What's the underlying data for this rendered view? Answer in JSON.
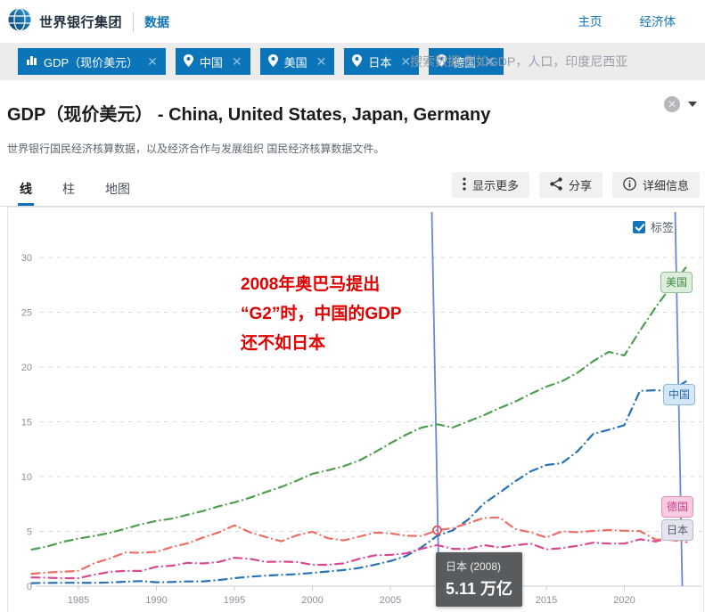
{
  "header": {
    "brand": "世界银行集团",
    "section": "数据",
    "nav": [
      {
        "label": "主页"
      },
      {
        "label": "经济体"
      }
    ]
  },
  "filters": {
    "tags": [
      {
        "label": "GDP（现价美元）",
        "icon": "bar-chart-icon"
      },
      {
        "label": "中国",
        "icon": "map-pin-icon"
      },
      {
        "label": "美国",
        "icon": "map-pin-icon"
      },
      {
        "label": "日本",
        "icon": "map-pin-icon"
      },
      {
        "label": "德国",
        "icon": "map-pin-icon"
      }
    ],
    "search_placeholder": "搜索数据.例如GDP，人口，印度尼西亚"
  },
  "page": {
    "title_main": "GDP（现价美元）",
    "title_rest": " - China, United States, Japan, Germany",
    "subtitle": "世界银行国民经济核算数据，以及经济合作与发展组织 国民经济核算数据文件。"
  },
  "toolbar": {
    "tabs": [
      {
        "label": "线",
        "active": true
      },
      {
        "label": "柱",
        "active": false
      },
      {
        "label": "地图",
        "active": false
      }
    ],
    "actions": [
      {
        "label": "显示更多",
        "icon": "kebab-icon"
      },
      {
        "label": "分享",
        "icon": "share-icon"
      },
      {
        "label": "详细信息",
        "icon": "info-icon"
      }
    ]
  },
  "chart_overlay": {
    "labels_checkbox": {
      "label": "标签",
      "checked": true
    },
    "annotation_lines": [
      "2008年奥巴马提出",
      "“G2”时，中国的GDP",
      "还不如日本"
    ],
    "annotation_color": "#e10000",
    "tooltip": {
      "title": "日本 (2008)",
      "value": "5.11 万亿"
    }
  },
  "chart_data": {
    "type": "line",
    "title": "GDP (现价美元), 万亿 (trillions USD)",
    "unit": "万亿",
    "x": [
      1982,
      1983,
      1984,
      1985,
      1986,
      1987,
      1988,
      1989,
      1990,
      1991,
      1992,
      1993,
      1994,
      1995,
      1996,
      1997,
      1998,
      1999,
      2000,
      2001,
      2002,
      2003,
      2004,
      2005,
      2006,
      2007,
      2008,
      2009,
      2010,
      2011,
      2012,
      2013,
      2014,
      2015,
      2016,
      2017,
      2018,
      2019,
      2020,
      2021,
      2022,
      2023,
      2024
    ],
    "series": [
      {
        "name": "美国",
        "color": "#4e9e50",
        "label_bg": "#ddeedd",
        "label_border": "#90c290",
        "label_color": "#3f8a42",
        "values": [
          3.34,
          3.63,
          4.04,
          4.34,
          4.58,
          4.86,
          5.24,
          5.64,
          5.96,
          6.16,
          6.52,
          6.86,
          7.29,
          7.64,
          8.07,
          8.58,
          9.06,
          9.63,
          10.25,
          10.58,
          10.94,
          11.46,
          12.22,
          13.04,
          13.82,
          14.47,
          14.77,
          14.48,
          15.05,
          15.6,
          16.25,
          16.84,
          17.55,
          18.21,
          18.7,
          19.48,
          20.53,
          21.38,
          21.06,
          23.32,
          25.44,
          27.36,
          29.18
        ]
      },
      {
        "name": "中国",
        "color": "#2a72b5",
        "label_bg": "#d4e7f8",
        "label_border": "#8ab8e0",
        "label_color": "#2a6cab",
        "values": [
          0.28,
          0.3,
          0.31,
          0.31,
          0.3,
          0.33,
          0.41,
          0.46,
          0.36,
          0.38,
          0.43,
          0.44,
          0.56,
          0.73,
          0.86,
          0.96,
          1.03,
          1.09,
          1.21,
          1.34,
          1.47,
          1.66,
          1.96,
          2.29,
          2.75,
          3.55,
          4.59,
          5.1,
          6.09,
          7.55,
          8.53,
          9.57,
          10.48,
          11.06,
          11.23,
          12.31,
          13.89,
          14.28,
          14.69,
          17.82,
          17.88,
          17.79,
          18.74
        ]
      },
      {
        "name": "德国",
        "color": "#d94892",
        "label_bg": "#f8cde1",
        "label_border": "#e88bb6",
        "label_color": "#cd3f86",
        "values": [
          0.8,
          0.77,
          0.72,
          0.73,
          1.04,
          1.3,
          1.4,
          1.39,
          1.77,
          1.87,
          2.13,
          2.07,
          2.21,
          2.59,
          2.5,
          2.21,
          2.24,
          2.2,
          1.95,
          1.95,
          2.08,
          2.5,
          2.81,
          2.85,
          2.99,
          3.42,
          3.75,
          3.41,
          3.4,
          3.75,
          3.53,
          3.73,
          3.89,
          3.36,
          3.47,
          3.69,
          3.97,
          3.89,
          3.89,
          4.28,
          4.08,
          4.46,
          4.66
        ]
      },
      {
        "name": "日本",
        "color": "#ee6e66",
        "label_bg": "#e4e4ee",
        "label_border": "#b9b9cf",
        "label_color": "#4f5b6e",
        "values": [
          1.13,
          1.24,
          1.32,
          1.4,
          2.08,
          2.53,
          3.07,
          3.05,
          3.13,
          3.58,
          3.91,
          4.45,
          4.91,
          5.55,
          4.92,
          4.49,
          4.1,
          4.64,
          4.97,
          4.37,
          4.18,
          4.52,
          4.89,
          4.83,
          4.6,
          4.58,
          5.11,
          5.29,
          5.76,
          6.23,
          6.27,
          5.21,
          4.9,
          4.44,
          5.0,
          4.93,
          5.04,
          5.12,
          5.06,
          5.03,
          4.26,
          4.21,
          4.02
        ]
      }
    ],
    "ylim": [
      0,
      32
    ],
    "yticks": [
      0,
      5,
      10,
      15,
      20,
      25,
      30
    ],
    "xticks": [
      1985,
      1990,
      1995,
      2000,
      2005,
      2010,
      2015,
      2020
    ],
    "grid": "horizontal-dashed",
    "legend_position": "right-line-end-labels",
    "vline_years": [
      2008,
      2023.6
    ],
    "marker_point": {
      "series": "日本",
      "year": 2008,
      "value": 5.11
    }
  }
}
